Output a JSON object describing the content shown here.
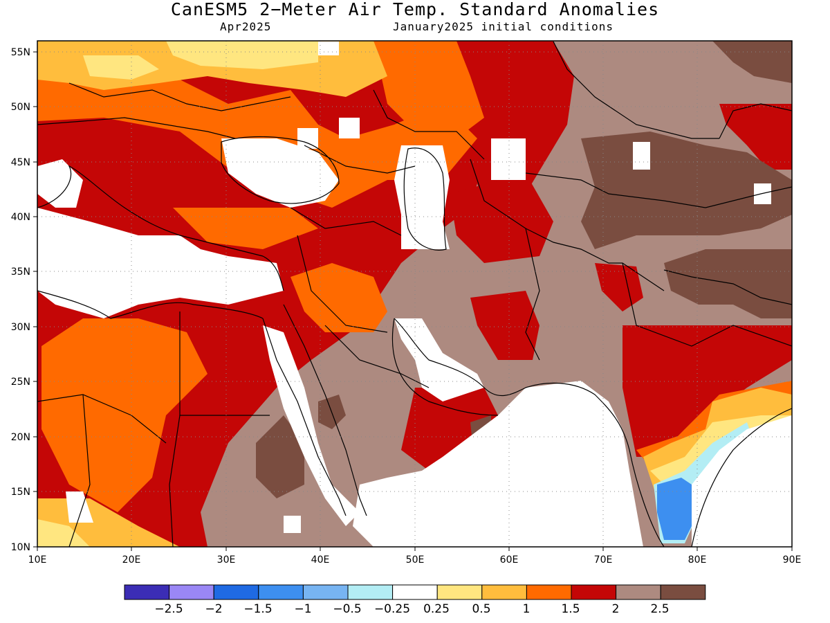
{
  "title": "CanESM5 2−Meter Air Temp. Standard Anomalies",
  "subtitle_left": "Apr2025",
  "subtitle_right": "January2025 initial conditions",
  "map": {
    "lon_range": [
      10,
      90
    ],
    "lat_range": [
      10,
      56
    ],
    "lon_ticks": [
      "10E",
      "20E",
      "30E",
      "40E",
      "50E",
      "60E",
      "70E",
      "80E",
      "90E"
    ],
    "lat_ticks": [
      "10N",
      "15N",
      "20N",
      "25N",
      "30N",
      "35N",
      "40N",
      "45N",
      "50N",
      "55N"
    ],
    "grid": "dotted"
  },
  "colorbar": {
    "colors": [
      "#3b2db5",
      "#9a87f5",
      "#1f6ae3",
      "#3d8ff0",
      "#77b4f2",
      "#b3edf4",
      "#ffffff",
      "#ffe680",
      "#ffbd3d",
      "#ff6a00",
      "#c40606",
      "#ad8a80",
      "#7a4d40"
    ],
    "labels": [
      "−2.5",
      "−2",
      "−1.5",
      "−1",
      "−0.5",
      "−0.25",
      "0.25",
      "0.5",
      "1",
      "1.5",
      "2",
      "2.5"
    ]
  }
}
